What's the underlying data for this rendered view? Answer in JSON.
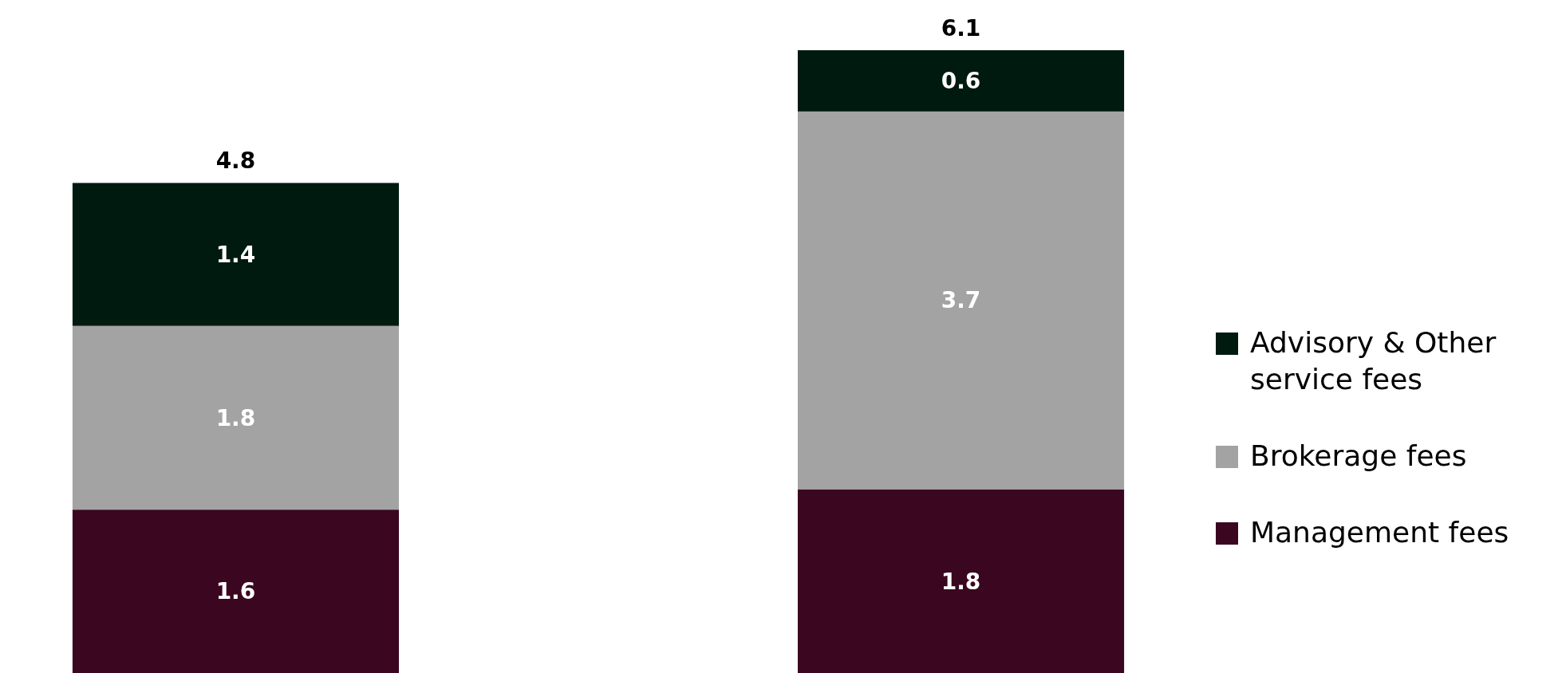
{
  "chart_data": {
    "type": "bar",
    "stacked": true,
    "categories": [
      null,
      null
    ],
    "series": [
      {
        "name": "Management fees",
        "color": "#3a0620",
        "values": [
          1.6,
          1.8
        ]
      },
      {
        "name": "Brokerage fees",
        "color": "#a3a3a3",
        "values": [
          1.8,
          3.7
        ]
      },
      {
        "name": "Advisory & Other service fees",
        "color": "#001a10",
        "values": [
          1.4,
          0.6
        ]
      }
    ],
    "data_labels": true,
    "totals": [
      "4.8",
      "6.1"
    ],
    "legend": "right"
  }
}
